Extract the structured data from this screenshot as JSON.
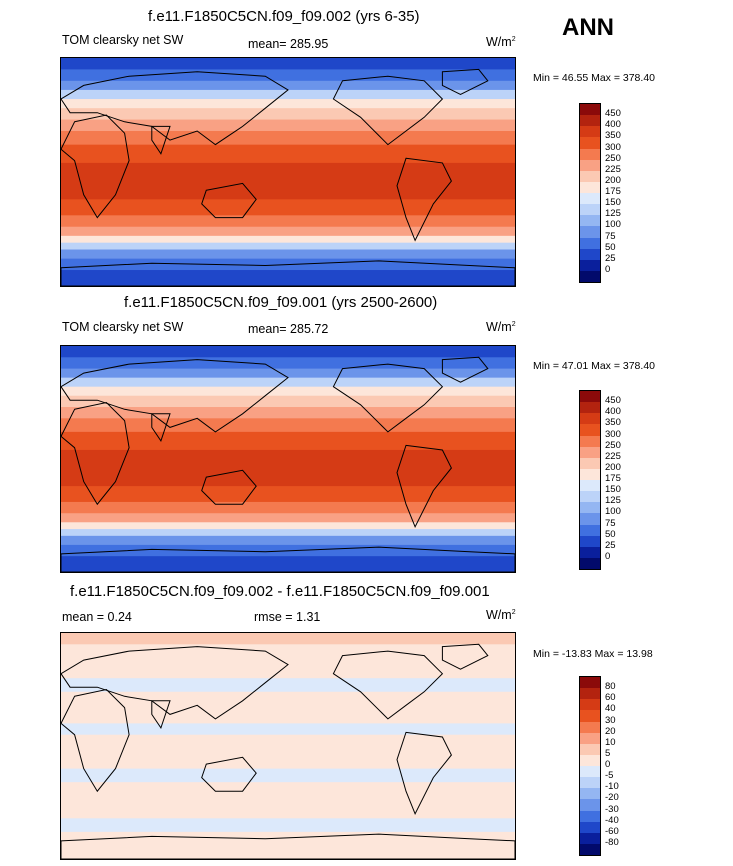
{
  "season": "ANN",
  "panels": [
    {
      "title": "f.e11.F1850C5CN.f09_f09.002 (yrs 6-35)",
      "left_label": "TOM clearsky net SW",
      "center_label": "mean= 285.95",
      "units": "W/m",
      "units_sup": "2",
      "minmax": "Min =  46.55 Max = 378.40"
    },
    {
      "title": "f.e11.F1850C5CN.f09_f09.001 (yrs 2500-2600)",
      "left_label": "TOM clearsky net SW",
      "center_label": "mean= 285.72",
      "units": "W/m",
      "units_sup": "2",
      "minmax": "Min =  47.01 Max = 378.40"
    },
    {
      "title": "f.e11.F1850C5CN.f09_f09.002 - f.e11.F1850C5CN.f09_f09.001",
      "left_label": "mean =   0.24",
      "center_label": "rmse =   1.31",
      "units": "W/m",
      "units_sup": "2",
      "minmax": "Min = -13.83 Max =  13.98"
    }
  ],
  "chart_data": [
    {
      "type": "heatmap",
      "title": "f.e11.F1850C5CN.f09_f09.002 (yrs 6-35)",
      "variable": "TOM clearsky net SW",
      "units": "W/m2",
      "mean": 285.95,
      "min": 46.55,
      "max": 378.4,
      "colorbar_levels": [
        "450",
        "400",
        "350",
        "300",
        "250",
        "225",
        "200",
        "175",
        "150",
        "125",
        "100",
        "75",
        "50",
        "25",
        "0"
      ],
      "colors": [
        "#8b0a0a",
        "#b3230f",
        "#d53b15",
        "#e8521f",
        "#f47a4f",
        "#f9a184",
        "#fbc9b3",
        "#fde6da",
        "#dce9fb",
        "#bcd3f8",
        "#94b6f2",
        "#6b94ea",
        "#4070e0",
        "#1f47c9",
        "#0a1f9c",
        "#020a6b"
      ]
    },
    {
      "type": "heatmap",
      "title": "f.e11.F1850C5CN.f09_f09.001 (yrs 2500-2600)",
      "variable": "TOM clearsky net SW",
      "units": "W/m2",
      "mean": 285.72,
      "min": 47.01,
      "max": 378.4,
      "colorbar_levels": [
        "450",
        "400",
        "350",
        "300",
        "250",
        "225",
        "200",
        "175",
        "150",
        "125",
        "100",
        "75",
        "50",
        "25",
        "0"
      ],
      "colors": [
        "#8b0a0a",
        "#b3230f",
        "#d53b15",
        "#e8521f",
        "#f47a4f",
        "#f9a184",
        "#fbc9b3",
        "#fde6da",
        "#dce9fb",
        "#bcd3f8",
        "#94b6f2",
        "#6b94ea",
        "#4070e0",
        "#1f47c9",
        "#0a1f9c",
        "#020a6b"
      ]
    },
    {
      "type": "heatmap",
      "title": "f.e11.F1850C5CN.f09_f09.002 - f.e11.F1850C5CN.f09_f09.001",
      "units": "W/m2",
      "mean": 0.24,
      "rmse": 1.31,
      "min": -13.83,
      "max": 13.98,
      "colorbar_levels": [
        "80",
        "60",
        "40",
        "30",
        "20",
        "10",
        "5",
        "0",
        "-5",
        "-10",
        "-20",
        "-30",
        "-40",
        "-60",
        "-80"
      ],
      "colors": [
        "#8b0a0a",
        "#b3230f",
        "#d53b15",
        "#e8521f",
        "#f47a4f",
        "#f9a184",
        "#fbc9b3",
        "#fde6da",
        "#dce9fb",
        "#bcd3f8",
        "#94b6f2",
        "#6b94ea",
        "#4070e0",
        "#1f47c9",
        "#0a1f9c",
        "#020a6b"
      ]
    }
  ]
}
